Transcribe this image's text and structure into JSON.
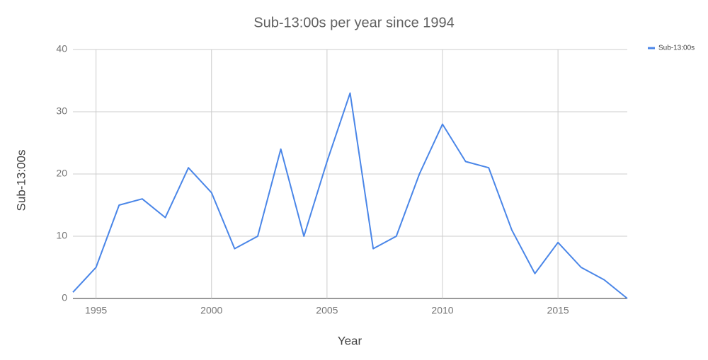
{
  "chart_data": {
    "type": "line",
    "title": "Sub-13:00s per year since 1994",
    "x_label": "Year",
    "y_label": "Sub-13:00s",
    "x": [
      1994,
      1995,
      1996,
      1997,
      1998,
      1999,
      2000,
      2001,
      2002,
      2003,
      2004,
      2005,
      2006,
      2007,
      2008,
      2009,
      2010,
      2011,
      2012,
      2013,
      2014,
      2015,
      2016,
      2017,
      2018
    ],
    "series": [
      {
        "name": "Sub-13:00s",
        "color": "#4a86e8",
        "values": [
          1,
          5,
          15,
          16,
          13,
          21,
          17,
          8,
          10,
          24,
          10,
          22,
          33,
          8,
          10,
          20,
          28,
          22,
          21,
          11,
          4,
          9,
          5,
          3,
          0
        ]
      }
    ],
    "xlim": [
      1994,
      2018
    ],
    "xticks": [
      1995,
      2000,
      2005,
      2010,
      2015
    ],
    "ylim": [
      0,
      40
    ],
    "yticks": [
      0,
      10,
      20,
      30,
      40
    ],
    "grid": true,
    "legend": "top-right"
  }
}
